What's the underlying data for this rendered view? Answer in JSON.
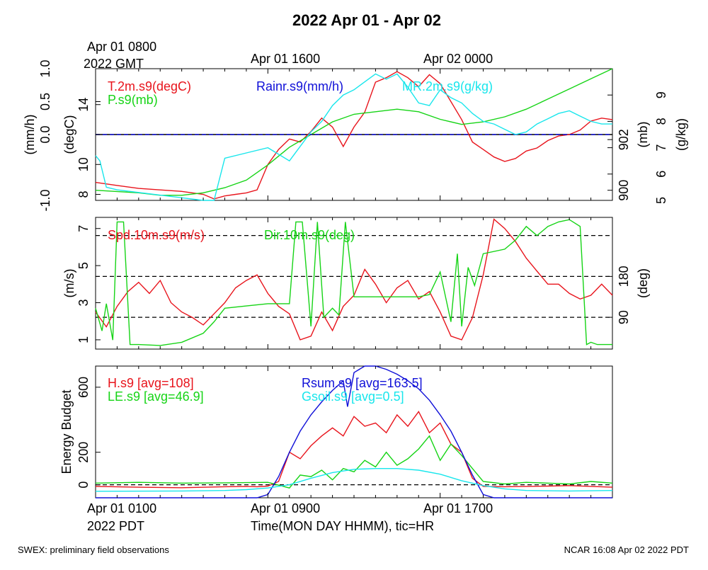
{
  "page": {
    "title": "2022 Apr 01 - Apr 02",
    "top_time_labels": [
      "Apr 01 0800",
      "2022 GMT",
      "Apr 01 1600",
      "Apr 02 0000"
    ],
    "bottom_time_labels": [
      "Apr 01 0100",
      "2022 PDT",
      "Apr 01 0900",
      "Apr 01 1700"
    ],
    "xlabel": "Time(MON DAY HHMM), tic=HR",
    "footer_left": "SWEX: preliminary field observations",
    "footer_right": "NCAR 16:08 Apr 02 2022 PDT"
  },
  "colors": {
    "red": "#e8141c",
    "green": "#16d416",
    "blue": "#1010d8",
    "cyan": "#18e6ec",
    "black": "#000000"
  },
  "chart_data": [
    {
      "type": "line",
      "x_hours_pdt": [
        0,
        24
      ],
      "axes": {
        "rain": {
          "label": "(mm/h)",
          "ticks": [
            "-1.0",
            "0.0",
            "0.5",
            "1.0"
          ],
          "range": [
            -1.0,
            1.0
          ]
        },
        "temp": {
          "label": "(degC)",
          "ticks": [
            "8",
            "10",
            "14"
          ],
          "range": [
            7.6,
            16.4
          ]
        },
        "pressure": {
          "label": "(mb)",
          "ticks": [
            "900",
            "902"
          ],
          "range": [
            899.6,
            904.8
          ]
        },
        "mixing_ratio": {
          "label": "(g/kg)",
          "ticks": [
            "5",
            "6",
            "7",
            "8",
            "9"
          ],
          "range": [
            5.0,
            10.0
          ]
        }
      },
      "legend": [
        "T.2m.s9(degC)",
        "P.s9(mb)",
        "Rainr.s9(mm/h)",
        "MR.2m.s9(g/kg)"
      ],
      "series": [
        {
          "name": "T.2m.s9(degC)",
          "color": "red",
          "axis": "temp",
          "x": [
            0,
            1,
            2,
            3,
            4,
            5,
            5.5,
            6,
            6.5,
            7,
            7.5,
            8,
            8.5,
            9,
            9.5,
            10,
            10.5,
            11,
            11.5,
            12,
            12.5,
            13,
            13.5,
            14,
            14.5,
            15,
            15.5,
            16,
            16.5,
            17,
            17.5,
            18,
            18.5,
            19,
            19.5,
            20,
            20.5,
            21,
            21.5,
            22,
            22.5,
            23,
            23.5,
            24
          ],
          "y": [
            8.8,
            8.6,
            8.4,
            8.3,
            8.2,
            8.0,
            7.7,
            7.9,
            8.0,
            8.1,
            8.3,
            10.0,
            11.0,
            11.7,
            11.5,
            12.2,
            13.1,
            12.5,
            11.2,
            12.5,
            13.5,
            15.5,
            15.8,
            16.2,
            15.8,
            15.2,
            16.0,
            15.4,
            14.2,
            13.0,
            11.5,
            11.0,
            10.5,
            10.2,
            10.4,
            10.9,
            11.1,
            11.6,
            11.9,
            12.0,
            12.3,
            12.9,
            13.1,
            13.0
          ]
        },
        {
          "name": "P.s9(mb)",
          "color": "green",
          "axis": "pressure",
          "x": [
            0,
            2,
            3,
            4,
            5,
            6,
            7,
            8,
            9,
            10,
            11,
            12,
            13,
            14,
            15,
            16,
            17,
            18,
            19,
            20,
            21,
            22,
            23,
            24
          ],
          "y": [
            900.0,
            899.9,
            899.8,
            899.8,
            899.9,
            900.1,
            900.4,
            901.0,
            901.7,
            902.2,
            902.7,
            903.0,
            903.1,
            903.2,
            903.1,
            902.8,
            902.6,
            902.7,
            902.9,
            903.2,
            903.6,
            904.0,
            904.4,
            904.8
          ]
        },
        {
          "name": "Rainr.s9(mm/h)",
          "color": "blue",
          "axis": "rain",
          "x": [
            0,
            24
          ],
          "y": [
            0.0,
            0.0
          ]
        },
        {
          "name": "MR.2m.s9(g/kg)",
          "color": "cyan",
          "axis": "mixing_ratio",
          "x": [
            0,
            0.2,
            0.5,
            1,
            2,
            3,
            4,
            5,
            5.5,
            6,
            7,
            8,
            9,
            10,
            10.5,
            11,
            11.5,
            12,
            12.5,
            13,
            13.5,
            14,
            14.5,
            15,
            15.5,
            16,
            16.5,
            17,
            17.5,
            18,
            18.5,
            19,
            19.5,
            20,
            20.5,
            21,
            21.5,
            22,
            22.5,
            23,
            23.5,
            24
          ],
          "y": [
            6.7,
            6.5,
            5.5,
            5.4,
            5.3,
            5.2,
            5.1,
            5.0,
            5.0,
            6.6,
            6.8,
            7.0,
            6.5,
            7.6,
            8.0,
            8.6,
            9.0,
            9.2,
            9.5,
            9.8,
            9.6,
            9.8,
            9.3,
            8.7,
            8.6,
            9.2,
            8.9,
            8.7,
            8.3,
            8.0,
            7.9,
            7.7,
            7.5,
            7.6,
            7.9,
            8.1,
            8.3,
            8.4,
            8.2,
            8.0,
            7.9,
            7.9
          ]
        }
      ]
    },
    {
      "type": "line",
      "x_hours_pdt": [
        0,
        24
      ],
      "axes": {
        "speed": {
          "label": "(m/s)",
          "ticks": [
            "1",
            "3",
            "5",
            "7"
          ],
          "range": [
            0.5,
            7.6
          ]
        },
        "direction": {
          "label": "(deg)",
          "ticks": [
            "90",
            "180"
          ],
          "range": [
            20,
            310
          ]
        }
      },
      "legend": [
        "Spd.10m.s9(m/s)",
        "Dir.10m.s9(deg)"
      ],
      "dashed_lines_deg": [
        90,
        180,
        270
      ],
      "series": [
        {
          "name": "Spd.10m.s9(m/s)",
          "color": "red",
          "axis": "speed",
          "x": [
            0,
            0.5,
            1,
            1.5,
            2,
            2.5,
            3,
            3.5,
            4,
            4.5,
            5,
            5.5,
            6,
            6.5,
            7,
            7.5,
            8,
            8.5,
            9,
            9.5,
            10,
            10.5,
            11,
            11.5,
            12,
            12.5,
            13,
            13.5,
            14,
            14.5,
            15,
            15.5,
            16,
            16.5,
            17,
            17.5,
            18,
            18.5,
            19,
            19.5,
            20,
            20.5,
            21,
            21.5,
            22,
            22.5,
            23,
            23.5,
            24
          ],
          "y": [
            2.5,
            1.7,
            2.8,
            3.6,
            4.1,
            3.5,
            4.2,
            3.0,
            2.5,
            2.2,
            1.8,
            2.4,
            3.0,
            3.8,
            4.2,
            4.5,
            3.5,
            2.8,
            2.4,
            1.0,
            1.2,
            2.5,
            1.5,
            2.8,
            3.4,
            4.8,
            4.0,
            3.0,
            3.8,
            4.2,
            3.2,
            3.6,
            2.5,
            1.2,
            1.0,
            2.2,
            4.5,
            7.5,
            7.0,
            6.3,
            5.4,
            4.7,
            4.0,
            4.0,
            3.5,
            3.2,
            3.4,
            4.0,
            3.4
          ]
        },
        {
          "name": "Dir.10m.s9(deg)",
          "color": "green",
          "axis": "direction",
          "x": [
            0,
            0.3,
            0.5,
            0.8,
            1.0,
            1.3,
            1.6,
            2,
            3,
            4,
            5,
            5.5,
            6,
            7,
            8,
            9,
            9.3,
            9.6,
            10,
            10.3,
            10.6,
            11,
            11.3,
            11.6,
            12,
            13,
            14,
            15,
            15.5,
            16,
            16.5,
            16.8,
            17,
            17.3,
            17.6,
            18,
            19,
            19.5,
            20,
            20.5,
            21,
            21.5,
            22,
            22.5,
            22.8,
            23,
            23.3,
            23.6,
            24
          ],
          "y": [
            110,
            60,
            120,
            40,
            300,
            300,
            30,
            30,
            28,
            35,
            55,
            80,
            110,
            115,
            120,
            120,
            300,
            300,
            70,
            300,
            90,
            110,
            95,
            300,
            135,
            135,
            135,
            135,
            140,
            190,
            80,
            230,
            70,
            200,
            160,
            230,
            240,
            260,
            290,
            270,
            290,
            300,
            305,
            290,
            30,
            35,
            30,
            30,
            30
          ]
        }
      ]
    },
    {
      "type": "line",
      "x_hours_pdt": [
        0,
        24
      ],
      "axes": {
        "energy": {
          "label": "Energy Budget",
          "ticks": [
            "0",
            "200",
            "600"
          ],
          "range": [
            -80,
            730
          ]
        }
      },
      "legend": [
        "H.s9 [avg=108]",
        "LE.s9 [avg=46.9]",
        "Rsum.s9 [avg=163.5]",
        "Gsoil.s9 [avg=0.5]"
      ],
      "zero_line": true,
      "series": [
        {
          "name": "H.s9 [avg=108]",
          "color": "red",
          "x": [
            0,
            2,
            4,
            6,
            7,
            7.5,
            8,
            8.5,
            9,
            9.5,
            10,
            10.5,
            11,
            11.5,
            12,
            12.5,
            13,
            13.5,
            14,
            14.5,
            15,
            15.5,
            16,
            16.5,
            17,
            17.5,
            18,
            19,
            20,
            21,
            22,
            23,
            24
          ],
          "y": [
            -10,
            -15,
            -18,
            -12,
            -10,
            -12,
            -8,
            20,
            200,
            160,
            240,
            300,
            350,
            300,
            420,
            360,
            380,
            320,
            430,
            360,
            450,
            320,
            380,
            250,
            200,
            40,
            -10,
            -12,
            -10,
            -8,
            -5,
            -10,
            -15
          ]
        },
        {
          "name": "LE.s9 [avg=46.9]",
          "color": "green",
          "x": [
            0,
            2,
            4,
            6,
            8,
            9,
            9.5,
            10,
            10.5,
            11,
            11.5,
            12,
            12.5,
            13,
            13.5,
            14,
            14.5,
            15,
            15.5,
            16,
            16.5,
            17,
            17.5,
            18,
            19,
            20,
            21,
            22,
            23,
            24
          ],
          "y": [
            10,
            15,
            10,
            12,
            15,
            -20,
            60,
            50,
            90,
            30,
            100,
            80,
            150,
            110,
            200,
            120,
            160,
            220,
            300,
            150,
            250,
            180,
            100,
            20,
            5,
            15,
            10,
            5,
            20,
            10
          ]
        },
        {
          "name": "Rsum.s9 [avg=163.5]",
          "color": "blue",
          "x": [
            0,
            7.5,
            8,
            8.5,
            9,
            9.5,
            10,
            10.5,
            11,
            11.5,
            11.7,
            12,
            12.5,
            13,
            13.5,
            14,
            14.5,
            15,
            15.5,
            16,
            16.5,
            17,
            17.5,
            18,
            18.5,
            20,
            22,
            24
          ],
          "y": [
            -80,
            -80,
            -60,
            50,
            200,
            330,
            430,
            510,
            580,
            640,
            480,
            690,
            730,
            730,
            710,
            680,
            640,
            590,
            520,
            430,
            330,
            200,
            60,
            -60,
            -80,
            -80,
            -80,
            -80
          ]
        },
        {
          "name": "Gsoil.s9 [avg=0.5]",
          "color": "cyan",
          "x": [
            0,
            4,
            6,
            7,
            8,
            9,
            10,
            11,
            12,
            13,
            14,
            15,
            16,
            17,
            18,
            19,
            20,
            22,
            24
          ],
          "y": [
            -40,
            -38,
            -35,
            -30,
            -20,
            0,
            40,
            75,
            95,
            100,
            100,
            90,
            65,
            25,
            -5,
            -25,
            -35,
            -38,
            -35
          ]
        }
      ]
    }
  ]
}
